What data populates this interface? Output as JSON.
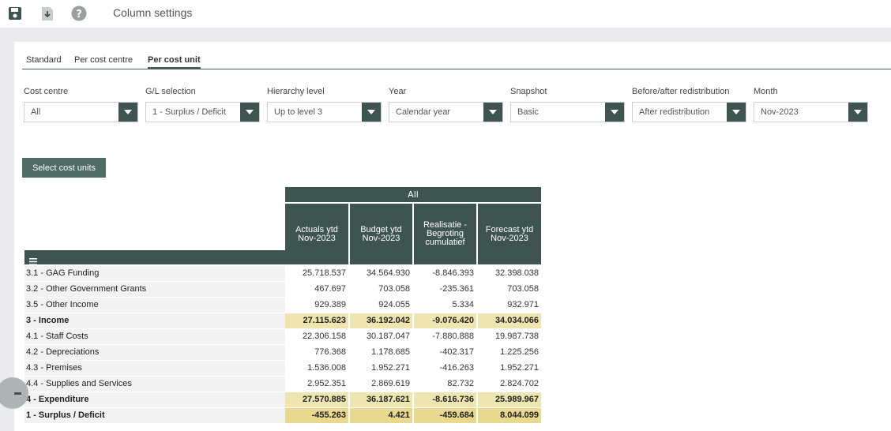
{
  "toolbar": {
    "title": "Column settings",
    "icons": [
      "save-icon",
      "download-icon",
      "help-icon"
    ]
  },
  "tabs": [
    {
      "label": "Standard",
      "active": false
    },
    {
      "label": "Per cost centre",
      "active": false
    },
    {
      "label": "Per cost unit",
      "active": true
    }
  ],
  "filters": [
    {
      "label": "Cost centre",
      "value": "All"
    },
    {
      "label": "G/L selection",
      "value": "1 - Surplus / Deficit"
    },
    {
      "label": "Hierarchy level",
      "value": "Up to level 3"
    },
    {
      "label": "Year",
      "value": "Calendar year"
    },
    {
      "label": "Snapshot",
      "value": "Basic"
    },
    {
      "label": "Before/after redistribution",
      "value": "After redistribution"
    },
    {
      "label": "Month",
      "value": "Nov-2023"
    }
  ],
  "select_button": "Select cost units",
  "table": {
    "group_header": "All",
    "columns": [
      {
        "l1": "Actuals ytd",
        "l2": "Nov-2023",
        "l3": ""
      },
      {
        "l1": "Budget ytd",
        "l2": "Nov-2023",
        "l3": ""
      },
      {
        "l1": "Realisatie -",
        "l2": "Begroting",
        "l3": "cumulatief"
      },
      {
        "l1": "Forecast ytd",
        "l2": "Nov-2023",
        "l3": ""
      }
    ],
    "rows": [
      {
        "name": "3.1 - GAG Funding",
        "values": [
          "25.718.537",
          "34.564.930",
          "-8.846.393",
          "32.398.038"
        ],
        "type": "normal"
      },
      {
        "name": "3.2 - Other Government Grants",
        "values": [
          "467.697",
          "703.058",
          "-235.361",
          "703.058"
        ],
        "type": "normal"
      },
      {
        "name": "3.5 - Other Income",
        "values": [
          "929.389",
          "924.055",
          "5.334",
          "932.971"
        ],
        "type": "normal"
      },
      {
        "name": "3 - Income",
        "values": [
          "27.115.623",
          "36.192.042",
          "-9.076.420",
          "34.034.066"
        ],
        "type": "total"
      },
      {
        "name": "4.1 - Staff Costs",
        "values": [
          "22.306.158",
          "30.187.047",
          "-7.880.888",
          "19.987.738"
        ],
        "type": "normal"
      },
      {
        "name": "4.2 - Depreciations",
        "values": [
          "776.368",
          "1.178.685",
          "-402.317",
          "1.225.256"
        ],
        "type": "normal"
      },
      {
        "name": "4.3 - Premises",
        "values": [
          "1.536.008",
          "1.952.271",
          "-416.263",
          "1.952.271"
        ],
        "type": "normal"
      },
      {
        "name": "4.4 - Supplies and Services",
        "values": [
          "2.952.351",
          "2.869.619",
          "82.732",
          "2.824.702"
        ],
        "type": "normal"
      },
      {
        "name": "4 - Expenditure",
        "values": [
          "27.570.885",
          "36.187.621",
          "-8.616.736",
          "25.989.967"
        ],
        "type": "total"
      },
      {
        "name": "1 - Surplus / Deficit",
        "values": [
          "-455.263",
          "4.421",
          "-459.684",
          "8.044.099"
        ],
        "type": "grand"
      }
    ]
  }
}
